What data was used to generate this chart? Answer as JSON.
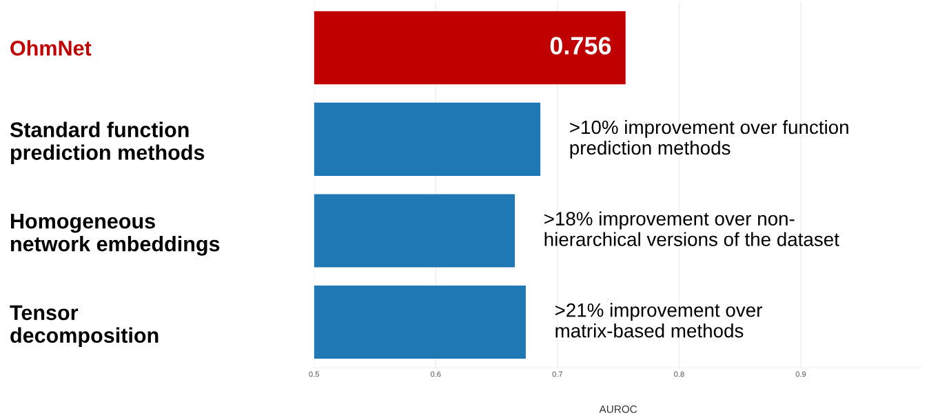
{
  "chart_data": {
    "type": "bar",
    "orientation": "horizontal",
    "xlabel": "AUROC",
    "categories": [
      "OhmNet",
      "Standard function\nprediction methods",
      "Homogeneous\nnetwork embeddings",
      "Tensor\ndecomposition"
    ],
    "values": [
      0.756,
      0.686,
      0.665,
      0.674
    ],
    "colors": [
      "#c00000",
      "#1f77b4",
      "#1f77b4",
      "#1f77b4"
    ],
    "value_labels": [
      "0.756",
      null,
      null,
      null
    ],
    "xlim": [
      0.5,
      1.0
    ],
    "xticks": [
      0.5,
      0.6,
      0.7,
      0.8,
      0.9
    ],
    "grid": "x",
    "annotations": [
      {
        "text": ">10% improvement over function\nprediction methods",
        "x": 0.686,
        "y": "Standard function\nprediction methods"
      },
      {
        "text": ">18% improvement over non-\nhierarchical versions of the dataset",
        "x": 0.665,
        "y": "Homogeneous\nnetwork embeddings"
      },
      {
        "text": ">21% improvement over\nmatrix-based methods",
        "x": 0.674,
        "y": "Tensor\ndecomposition"
      }
    ]
  }
}
